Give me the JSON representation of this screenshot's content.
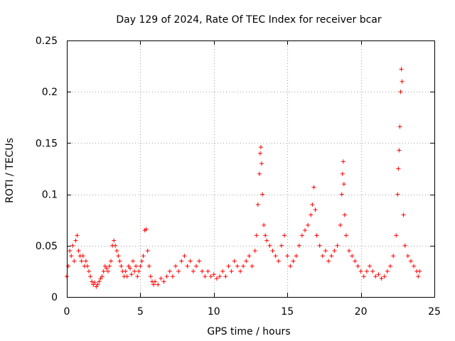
{
  "chart_data": {
    "type": "scatter",
    "title": "Day 129 of 2024, Rate Of TEC Index for receiver bcar",
    "xlabel": "GPS time / hours",
    "ylabel": "ROTI / TECUs",
    "xlim": [
      0,
      25
    ],
    "ylim": [
      0,
      0.25
    ],
    "xticks": [
      0,
      5,
      10,
      15,
      20,
      25
    ],
    "xtick_labels": [
      "0",
      "5",
      "10",
      "15",
      "20",
      "25"
    ],
    "yticks": [
      0,
      0.05,
      0.1,
      0.15,
      0.2,
      0.25
    ],
    "ytick_labels": [
      "0",
      "0.05",
      "0.1",
      "0.15",
      "0.2",
      "0.25"
    ],
    "grid": true,
    "marker": "+",
    "color": "#ff0000",
    "series": [
      {
        "name": "ROTI",
        "points": [
          [
            0.0,
            0.02
          ],
          [
            0.1,
            0.03
          ],
          [
            0.2,
            0.045
          ],
          [
            0.3,
            0.04
          ],
          [
            0.4,
            0.05
          ],
          [
            0.5,
            0.035
          ],
          [
            0.6,
            0.055
          ],
          [
            0.7,
            0.06
          ],
          [
            0.8,
            0.045
          ],
          [
            0.9,
            0.04
          ],
          [
            1.0,
            0.035
          ],
          [
            1.1,
            0.04
          ],
          [
            1.2,
            0.03
          ],
          [
            1.3,
            0.035
          ],
          [
            1.4,
            0.03
          ],
          [
            1.5,
            0.025
          ],
          [
            1.6,
            0.02
          ],
          [
            1.7,
            0.015
          ],
          [
            1.8,
            0.012
          ],
          [
            1.9,
            0.014
          ],
          [
            2.0,
            0.01
          ],
          [
            2.1,
            0.012
          ],
          [
            2.2,
            0.015
          ],
          [
            2.3,
            0.018
          ],
          [
            2.4,
            0.02
          ],
          [
            2.5,
            0.025
          ],
          [
            2.6,
            0.03
          ],
          [
            2.7,
            0.028
          ],
          [
            2.8,
            0.025
          ],
          [
            2.9,
            0.03
          ],
          [
            3.0,
            0.035
          ],
          [
            3.1,
            0.05
          ],
          [
            3.2,
            0.055
          ],
          [
            3.3,
            0.05
          ],
          [
            3.4,
            0.045
          ],
          [
            3.5,
            0.04
          ],
          [
            3.6,
            0.035
          ],
          [
            3.7,
            0.03
          ],
          [
            3.8,
            0.025
          ],
          [
            3.9,
            0.02
          ],
          [
            4.0,
            0.025
          ],
          [
            4.1,
            0.02
          ],
          [
            4.2,
            0.03
          ],
          [
            4.3,
            0.028
          ],
          [
            4.4,
            0.022
          ],
          [
            4.5,
            0.035
          ],
          [
            4.6,
            0.025
          ],
          [
            4.7,
            0.03
          ],
          [
            4.8,
            0.02
          ],
          [
            4.9,
            0.025
          ],
          [
            5.0,
            0.03
          ],
          [
            5.1,
            0.035
          ],
          [
            5.2,
            0.04
          ],
          [
            5.3,
            0.065
          ],
          [
            5.4,
            0.066
          ],
          [
            5.5,
            0.045
          ],
          [
            5.6,
            0.03
          ],
          [
            5.7,
            0.02
          ],
          [
            5.8,
            0.015
          ],
          [
            5.9,
            0.012
          ],
          [
            6.0,
            0.015
          ],
          [
            6.2,
            0.012
          ],
          [
            6.4,
            0.018
          ],
          [
            6.6,
            0.015
          ],
          [
            6.8,
            0.02
          ],
          [
            7.0,
            0.025
          ],
          [
            7.2,
            0.02
          ],
          [
            7.4,
            0.03
          ],
          [
            7.6,
            0.025
          ],
          [
            7.8,
            0.035
          ],
          [
            8.0,
            0.04
          ],
          [
            8.2,
            0.03
          ],
          [
            8.4,
            0.035
          ],
          [
            8.6,
            0.025
          ],
          [
            8.8,
            0.03
          ],
          [
            9.0,
            0.035
          ],
          [
            9.2,
            0.025
          ],
          [
            9.4,
            0.02
          ],
          [
            9.6,
            0.025
          ],
          [
            9.8,
            0.02
          ],
          [
            10.0,
            0.022
          ],
          [
            10.2,
            0.018
          ],
          [
            10.4,
            0.02
          ],
          [
            10.6,
            0.025
          ],
          [
            10.8,
            0.02
          ],
          [
            11.0,
            0.03
          ],
          [
            11.2,
            0.025
          ],
          [
            11.4,
            0.035
          ],
          [
            11.6,
            0.03
          ],
          [
            11.8,
            0.025
          ],
          [
            12.0,
            0.03
          ],
          [
            12.2,
            0.035
          ],
          [
            12.4,
            0.04
          ],
          [
            12.6,
            0.03
          ],
          [
            12.8,
            0.045
          ],
          [
            12.9,
            0.06
          ],
          [
            13.0,
            0.09
          ],
          [
            13.1,
            0.12
          ],
          [
            13.15,
            0.14
          ],
          [
            13.2,
            0.146
          ],
          [
            13.25,
            0.13
          ],
          [
            13.3,
            0.1
          ],
          [
            13.4,
            0.07
          ],
          [
            13.5,
            0.06
          ],
          [
            13.6,
            0.055
          ],
          [
            13.8,
            0.05
          ],
          [
            14.0,
            0.045
          ],
          [
            14.2,
            0.04
          ],
          [
            14.4,
            0.035
          ],
          [
            14.6,
            0.05
          ],
          [
            14.8,
            0.06
          ],
          [
            15.0,
            0.04
          ],
          [
            15.2,
            0.03
          ],
          [
            15.4,
            0.035
          ],
          [
            15.6,
            0.04
          ],
          [
            15.8,
            0.05
          ],
          [
            16.0,
            0.06
          ],
          [
            16.2,
            0.065
          ],
          [
            16.4,
            0.07
          ],
          [
            16.6,
            0.08
          ],
          [
            16.7,
            0.09
          ],
          [
            16.8,
            0.107
          ],
          [
            16.9,
            0.085
          ],
          [
            17.0,
            0.06
          ],
          [
            17.2,
            0.05
          ],
          [
            17.4,
            0.04
          ],
          [
            17.6,
            0.045
          ],
          [
            17.8,
            0.035
          ],
          [
            18.0,
            0.04
          ],
          [
            18.2,
            0.045
          ],
          [
            18.4,
            0.05
          ],
          [
            18.6,
            0.07
          ],
          [
            18.7,
            0.1
          ],
          [
            18.75,
            0.12
          ],
          [
            18.8,
            0.132
          ],
          [
            18.85,
            0.11
          ],
          [
            18.9,
            0.08
          ],
          [
            19.0,
            0.06
          ],
          [
            19.2,
            0.045
          ],
          [
            19.4,
            0.04
          ],
          [
            19.6,
            0.035
          ],
          [
            19.8,
            0.03
          ],
          [
            20.0,
            0.025
          ],
          [
            20.2,
            0.02
          ],
          [
            20.4,
            0.025
          ],
          [
            20.6,
            0.03
          ],
          [
            20.8,
            0.025
          ],
          [
            21.0,
            0.02
          ],
          [
            21.2,
            0.022
          ],
          [
            21.4,
            0.018
          ],
          [
            21.6,
            0.02
          ],
          [
            21.8,
            0.025
          ],
          [
            22.0,
            0.03
          ],
          [
            22.2,
            0.04
          ],
          [
            22.4,
            0.06
          ],
          [
            22.5,
            0.1
          ],
          [
            22.55,
            0.125
          ],
          [
            22.6,
            0.143
          ],
          [
            22.65,
            0.166
          ],
          [
            22.7,
            0.2
          ],
          [
            22.75,
            0.222
          ],
          [
            22.8,
            0.21
          ],
          [
            22.9,
            0.08
          ],
          [
            23.0,
            0.05
          ],
          [
            23.2,
            0.04
          ],
          [
            23.4,
            0.035
          ],
          [
            23.6,
            0.03
          ],
          [
            23.8,
            0.025
          ],
          [
            23.9,
            0.02
          ],
          [
            24.0,
            0.025
          ]
        ]
      }
    ]
  }
}
